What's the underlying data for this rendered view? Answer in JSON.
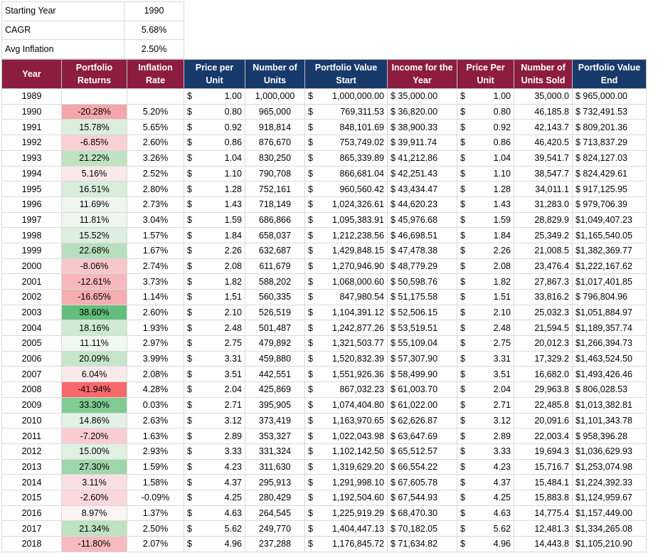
{
  "summary": [
    {
      "label": "Starting Year",
      "value": "1990"
    },
    {
      "label": "CAGR",
      "value": "5.68%"
    },
    {
      "label": "Avg Inflation",
      "value": "2.50%"
    }
  ],
  "headers": [
    {
      "text": "Year",
      "color": "#8c1d40"
    },
    {
      "text": "Portfolio Returns",
      "color": "#8c1d40"
    },
    {
      "text": "Inflation Rate",
      "color": "#8c1d40"
    },
    {
      "text": "Price per Unit",
      "color": "#183a6b"
    },
    {
      "text": "Number of Units",
      "color": "#183a6b"
    },
    {
      "text": "Portfolio Value Start",
      "color": "#183a6b"
    },
    {
      "text": "Income for the Year",
      "color": "#8c1d40"
    },
    {
      "text": "Price Per Unit",
      "color": "#8c1d40"
    },
    {
      "text": "Number of Units Sold",
      "color": "#8c1d40"
    },
    {
      "text": "Portfolio Value End",
      "color": "#183a6b"
    }
  ],
  "currency_symbol": "$",
  "rows": [
    [
      "1989",
      "",
      "",
      "1.00",
      "1,000,000",
      "1,000,000.00",
      "$ 35,000.00",
      "1.00",
      "35,000.0",
      "$ 965,000.00"
    ],
    [
      "1990",
      "-20.28%",
      "5.20%",
      "0.80",
      "965,000",
      "769,311.53",
      "$ 36,820.00",
      "0.80",
      "46,185.8",
      "$ 732,491.53"
    ],
    [
      "1991",
      "15.78%",
      "5.65%",
      "0.92",
      "918,814",
      "848,101.69",
      "$ 38,900.33",
      "0.92",
      "42,143.7",
      "$ 809,201.36"
    ],
    [
      "1992",
      "-6.85%",
      "2.60%",
      "0.86",
      "876,670",
      "753,749.02",
      "$ 39,911.74",
      "0.86",
      "46,420.5",
      "$ 713,837.29"
    ],
    [
      "1993",
      "21.22%",
      "3.26%",
      "1.04",
      "830,250",
      "865,339.89",
      "$ 41,212.86",
      "1.04",
      "39,541.7",
      "$ 824,127.03"
    ],
    [
      "1994",
      "5.16%",
      "2.52%",
      "1.10",
      "790,708",
      "866,681.04",
      "$ 42,251.43",
      "1.10",
      "38,547.7",
      "$ 824,429.61"
    ],
    [
      "1995",
      "16.51%",
      "2.80%",
      "1.28",
      "752,161",
      "960,560.42",
      "$ 43,434.47",
      "1.28",
      "34,011.1",
      "$ 917,125.95"
    ],
    [
      "1996",
      "11.69%",
      "2.73%",
      "1.43",
      "718,149",
      "1,024,326.61",
      "$ 44,620.23",
      "1.43",
      "31,283.0",
      "$ 979,706.39"
    ],
    [
      "1997",
      "11.81%",
      "3.04%",
      "1.59",
      "686,866",
      "1,095,383.91",
      "$ 45,976.68",
      "1.59",
      "28,829.9",
      "$1,049,407.23"
    ],
    [
      "1998",
      "15.52%",
      "1.57%",
      "1.84",
      "658,037",
      "1,212,238.56",
      "$ 46,698.51",
      "1.84",
      "25,349.2",
      "$1,165,540.05"
    ],
    [
      "1999",
      "22.68%",
      "1.67%",
      "2.26",
      "632,687",
      "1,429,848.15",
      "$ 47,478.38",
      "2.26",
      "21,008.5",
      "$1,382,369.77"
    ],
    [
      "2000",
      "-8.06%",
      "2.74%",
      "2.08",
      "611,679",
      "1,270,946.90",
      "$ 48,779.29",
      "2.08",
      "23,476.4",
      "$1,222,167.62"
    ],
    [
      "2001",
      "-12.61%",
      "3.73%",
      "1.82",
      "588,202",
      "1,068,000.60",
      "$ 50,598.76",
      "1.82",
      "27,867.3",
      "$1,017,401.85"
    ],
    [
      "2002",
      "-16.65%",
      "1.14%",
      "1.51",
      "560,335",
      "847,980.54",
      "$ 51,175.58",
      "1.51",
      "33,816.2",
      "$ 796,804.96"
    ],
    [
      "2003",
      "38.60%",
      "2.60%",
      "2.10",
      "526,519",
      "1,104,391.12",
      "$ 52,506.15",
      "2.10",
      "25,032.3",
      "$1,051,884.97"
    ],
    [
      "2004",
      "18.16%",
      "1.93%",
      "2.48",
      "501,487",
      "1,242,877.26",
      "$ 53,519.51",
      "2.48",
      "21,594.5",
      "$1,189,357.74"
    ],
    [
      "2005",
      "11.11%",
      "2.97%",
      "2.75",
      "479,892",
      "1,321,503.77",
      "$ 55,109.04",
      "2.75",
      "20,012.3",
      "$1,266,394.73"
    ],
    [
      "2006",
      "20.09%",
      "3.99%",
      "3.31",
      "459,880",
      "1,520,832.39",
      "$ 57,307.90",
      "3.31",
      "17,329.2",
      "$1,463,524.50"
    ],
    [
      "2007",
      "6.04%",
      "2.08%",
      "3.51",
      "442,551",
      "1,551,926.36",
      "$ 58,499.90",
      "3.51",
      "16,682.0",
      "$1,493,426.46"
    ],
    [
      "2008",
      "-41.94%",
      "4.28%",
      "2.04",
      "425,869",
      "867,032.23",
      "$ 61,003.70",
      "2.04",
      "29,963.8",
      "$ 806,028.53"
    ],
    [
      "2009",
      "33.30%",
      "0.03%",
      "2.71",
      "395,905",
      "1,074,404.80",
      "$ 61,022.00",
      "2.71",
      "22,485.8",
      "$1,013,382.81"
    ],
    [
      "2010",
      "14.86%",
      "2.63%",
      "3.12",
      "373,419",
      "1,163,970.65",
      "$ 62,626.87",
      "3.12",
      "20,091.6",
      "$1,101,343.78"
    ],
    [
      "2011",
      "-7.20%",
      "1.63%",
      "2.89",
      "353,327",
      "1,022,043.98",
      "$ 63,647.69",
      "2.89",
      "22,003.4",
      "$ 958,396.28"
    ],
    [
      "2012",
      "15.00%",
      "2.93%",
      "3.33",
      "331,324",
      "1,102,142.50",
      "$ 65,512.57",
      "3.33",
      "19,694.3",
      "$1,036,629.93"
    ],
    [
      "2013",
      "27.30%",
      "1.59%",
      "4.23",
      "311,630",
      "1,319,629.20",
      "$ 66,554.22",
      "4.23",
      "15,716.7",
      "$1,253,074.98"
    ],
    [
      "2014",
      "3.11%",
      "1.58%",
      "4.37",
      "295,913",
      "1,291,998.10",
      "$ 67,605.78",
      "4.37",
      "15,484.1",
      "$1,224,392.33"
    ],
    [
      "2015",
      "-2.60%",
      "-0.09%",
      "4.25",
      "280,429",
      "1,192,504.60",
      "$ 67,544.93",
      "4.25",
      "15,883.8",
      "$1,124,959.67"
    ],
    [
      "2016",
      "8.97%",
      "1.37%",
      "4.63",
      "264,545",
      "1,225,919.29",
      "$ 68,470.30",
      "4.63",
      "14,775.4",
      "$1,157,449.00"
    ],
    [
      "2017",
      "21.34%",
      "2.50%",
      "5.62",
      "249,770",
      "1,404,447.13",
      "$ 70,182.05",
      "5.62",
      "12,481.3",
      "$1,334,265.08"
    ],
    [
      "2018",
      "-11.80%",
      "2.07%",
      "4.96",
      "237,288",
      "1,176,845.72",
      "$ 71,634.82",
      "4.96",
      "14,443.8",
      "$1,105,210.90"
    ]
  ],
  "return_colors": {
    "-20.28%": "#f4a6ab",
    "15.78%": "#dcefdd",
    "-6.85%": "#f9d0d3",
    "21.22%": "#bfe2c3",
    "5.16%": "#fae8ea",
    "16.51%": "#d8edda",
    "11.69%": "#eef6f0",
    "11.81%": "#edf6ef",
    "15.52%": "#ddefde",
    "22.68%": "#b8dfbd",
    "-8.06%": "#f8c7cb",
    "-12.61%": "#f6b8bd",
    "-16.65%": "#f5adb2",
    "38.60%": "#63be7b",
    "18.16%": "#cfe9d2",
    "11.11%": "#f1f8f2",
    "20.09%": "#c6e5c9",
    "6.04%": "#fae9eb",
    "-41.94%": "#f8696b",
    "33.30%": "#80cb92",
    "14.86%": "#e1f1e3",
    "-7.20%": "#f9cdd0",
    "15.00%": "#e0f0e2",
    "27.30%": "#9fd5ab",
    "3.11%": "#f9dfe2",
    "-2.60%": "#fad8db",
    "8.97%": "#fbf3f4",
    "21.34%": "#bfe2c3",
    "-11.80%": "#f6babf"
  }
}
